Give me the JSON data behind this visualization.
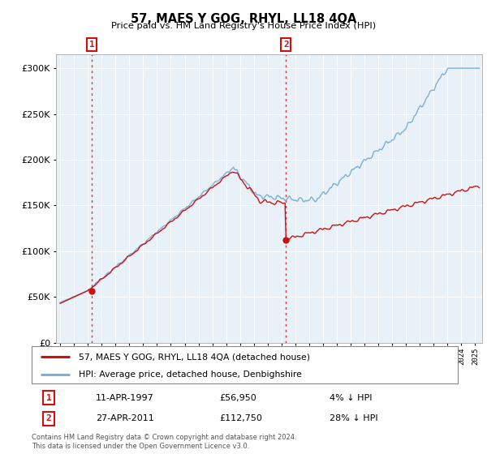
{
  "title": "57, MAES Y GOG, RHYL, LL18 4QA",
  "subtitle": "Price paid vs. HM Land Registry's House Price Index (HPI)",
  "ytick_values": [
    0,
    50000,
    100000,
    150000,
    200000,
    250000,
    300000
  ],
  "ylim": [
    0,
    315000
  ],
  "xlim_start": 1994.7,
  "xlim_end": 2025.5,
  "marker1_x": 1997.28,
  "marker1_y": 56950,
  "marker2_x": 2011.32,
  "marker2_y": 112750,
  "vline_color": "#dd3333",
  "vline_style": ":",
  "hpi_color": "#7ab0d8",
  "sale_color": "#cc1111",
  "marker_color": "#cc1111",
  "background_chart": "#e8f0f8",
  "grid_color": "#ffffff",
  "legend_label_sale": "57, MAES Y GOG, RHYL, LL18 4QA (detached house)",
  "legend_label_hpi": "HPI: Average price, detached house, Denbighshire",
  "marker1_date": "11-APR-1997",
  "marker1_price": "£56,950",
  "marker1_note": "4% ↓ HPI",
  "marker2_date": "27-APR-2011",
  "marker2_price": "£112,750",
  "marker2_note": "28% ↓ HPI",
  "footnote": "Contains HM Land Registry data © Crown copyright and database right 2024.\nThis data is licensed under the Open Government Licence v3.0."
}
